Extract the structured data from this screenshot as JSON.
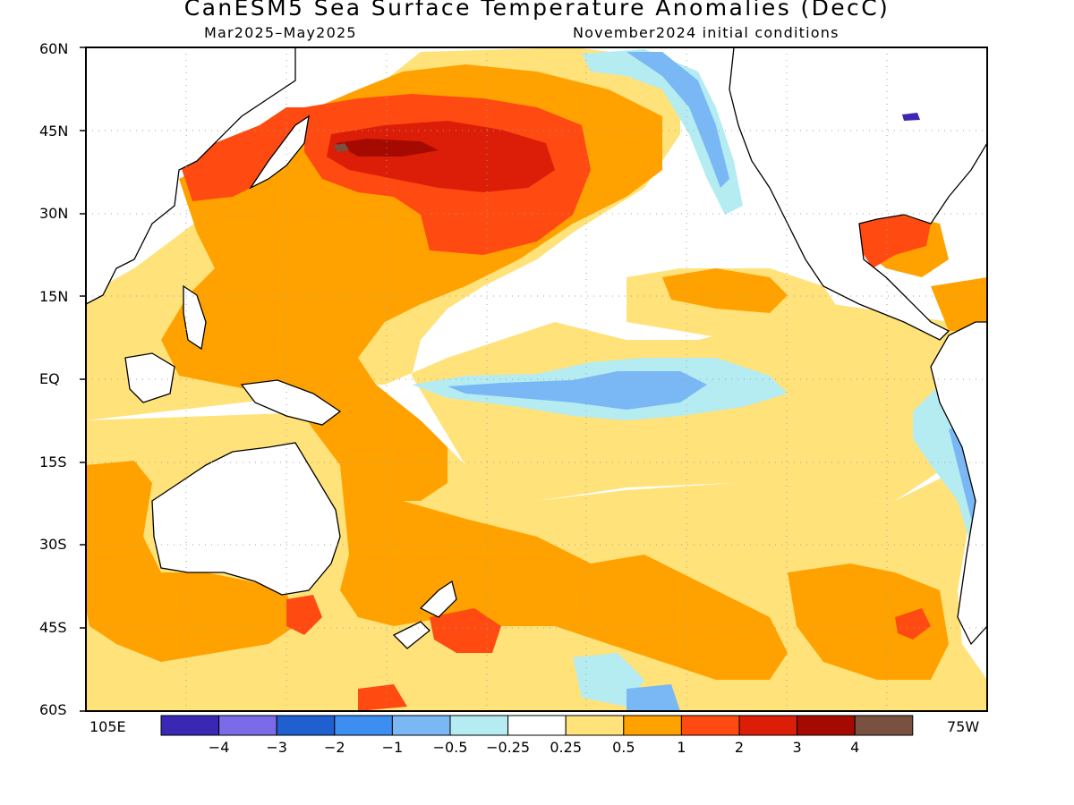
{
  "title": "CanESM5 Sea Surface Temperature Anomalies (DecC)",
  "subtitle_left": "Mar2025–May2025",
  "subtitle_right": "November2024 initial conditions",
  "map": {
    "lat_labels": [
      "60N",
      "45N",
      "30N",
      "15N",
      "EQ",
      "15S",
      "30S",
      "45S",
      "60S"
    ],
    "lon_left_label": "105E",
    "lon_right_label": "75W",
    "lat_range": [
      -60,
      60
    ],
    "lon_range_east": [
      105,
      285
    ],
    "grid": "dotted"
  },
  "colorbar": {
    "labels": [
      "−4",
      "−3",
      "−2",
      "−1",
      "−0.5",
      "−0.25",
      "0.25",
      "0.5",
      "1",
      "2",
      "3",
      "4"
    ],
    "colors": [
      "#3a28b4",
      "#7c6be8",
      "#1f5fd0",
      "#3c8ef0",
      "#7ab8f5",
      "#b4ecf2",
      "#ffffff",
      "#ffe27a",
      "#ffa200",
      "#ff4a12",
      "#dc1e08",
      "#a50a00",
      "#7a5040"
    ]
  },
  "anomaly_colors": {
    "light_warm": "#ffe27a",
    "warm": "#ffa200",
    "hot": "#ff4a12",
    "very_hot": "#dc1e08",
    "extreme": "#a50a00",
    "cool": "#b4ecf2",
    "cold": "#7ab8f5",
    "very_cold": "#3c8ef0"
  }
}
